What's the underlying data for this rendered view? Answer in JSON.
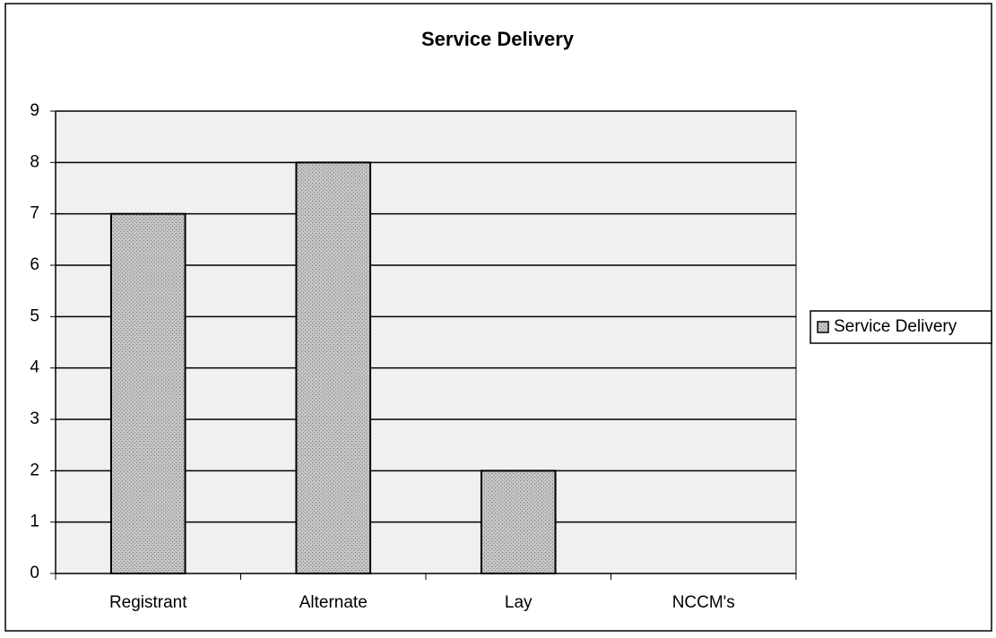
{
  "chart_data": {
    "type": "bar",
    "title": "Service Delivery",
    "categories": [
      "Registrant",
      "Alternate",
      "Lay",
      "NCCM's"
    ],
    "series": [
      {
        "name": "Service Delivery",
        "color": "#b8b8b8",
        "values": [
          7,
          8,
          2,
          0
        ]
      }
    ],
    "ylim": [
      0,
      9
    ],
    "yticks": [
      0,
      1,
      2,
      3,
      4,
      5,
      6,
      7,
      8,
      9
    ],
    "grid": true,
    "legend": "right"
  }
}
